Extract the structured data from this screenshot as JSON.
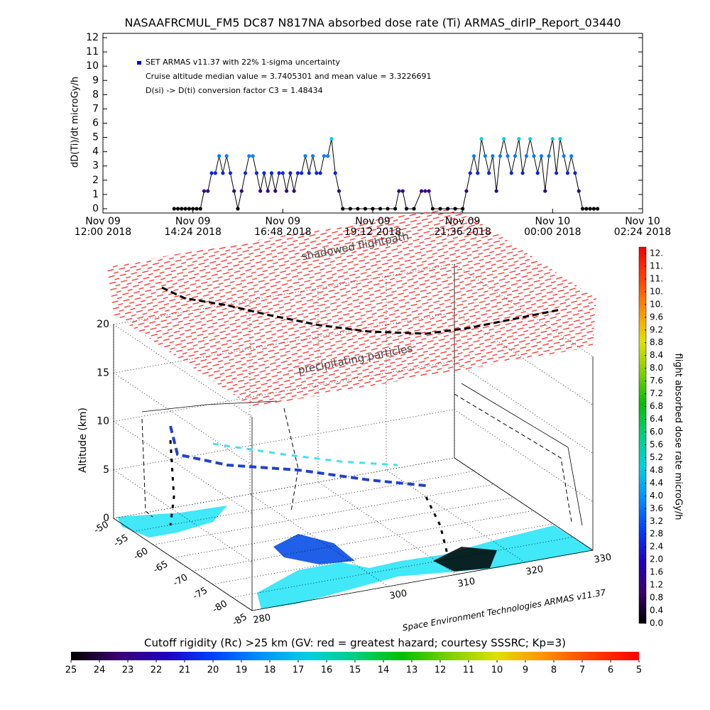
{
  "chart_data": [
    {
      "type": "line",
      "title": "NASAAFRCMUL_FM5 DC87 N817NA absorbed dose rate (Ti) ARMAS_dirIP_Report_03440",
      "ylabel": "dD(Ti)/dt microGy/h",
      "annotations": [
        "Cruise altitude median value = 3.7405301 and mean value = 3.3226691",
        "D(si) -> D(ti) conversion factor C3 = 1.48434"
      ],
      "xlim": [
        "2018-11-09T12:00",
        "2018-11-10T02:24"
      ],
      "xticks": [
        {
          "value": "2018-11-09T12:00",
          "label": "Nov 09\n12:00 2018"
        },
        {
          "value": "2018-11-09T14:24",
          "label": "Nov 09\n14:24 2018"
        },
        {
          "value": "2018-11-09T16:48",
          "label": "Nov 09\n16:48 2018"
        },
        {
          "value": "2018-11-09T19:12",
          "label": "Nov 09\n19:12 2018"
        },
        {
          "value": "2018-11-09T21:36",
          "label": "Nov 09\n21:36 2018"
        },
        {
          "value": "2018-11-10T00:00",
          "label": "Nov 10\n00:00 2018"
        },
        {
          "value": "2018-11-10T02:24",
          "label": "Nov 10\n02:24 2018"
        }
      ],
      "ylim": [
        -0.3,
        12.3
      ],
      "yticks": [
        0,
        1,
        2,
        3,
        4,
        5,
        6,
        7,
        8,
        9,
        10,
        11,
        12
      ],
      "x": [
        "2018-11-09T13:54",
        "2018-11-09T14:00",
        "2018-11-09T14:06",
        "2018-11-09T14:12",
        "2018-11-09T14:18",
        "2018-11-09T14:24",
        "2018-11-09T14:30",
        "2018-11-09T14:36",
        "2018-11-09T14:42",
        "2018-11-09T14:48",
        "2018-11-09T14:54",
        "2018-11-09T15:00",
        "2018-11-09T15:06",
        "2018-11-09T15:12",
        "2018-11-09T15:18",
        "2018-11-09T15:24",
        "2018-11-09T15:30",
        "2018-11-09T15:36",
        "2018-11-09T15:42",
        "2018-11-09T15:48",
        "2018-11-09T15:54",
        "2018-11-09T16:00",
        "2018-11-09T16:06",
        "2018-11-09T16:12",
        "2018-11-09T16:18",
        "2018-11-09T16:24",
        "2018-11-09T16:30",
        "2018-11-09T16:36",
        "2018-11-09T16:42",
        "2018-11-09T16:48",
        "2018-11-09T16:54",
        "2018-11-09T17:00",
        "2018-11-09T17:06",
        "2018-11-09T17:12",
        "2018-11-09T17:18",
        "2018-11-09T17:24",
        "2018-11-09T17:30",
        "2018-11-09T17:36",
        "2018-11-09T17:42",
        "2018-11-09T17:48",
        "2018-11-09T17:54",
        "2018-11-09T18:00",
        "2018-11-09T18:06",
        "2018-11-09T18:12",
        "2018-11-09T18:18",
        "2018-11-09T18:24",
        "2018-11-09T18:36",
        "2018-11-09T18:48",
        "2018-11-09T19:00",
        "2018-11-09T19:12",
        "2018-11-09T19:24",
        "2018-11-09T19:36",
        "2018-11-09T19:48",
        "2018-11-09T19:54",
        "2018-11-09T20:00",
        "2018-11-09T20:06",
        "2018-11-09T20:18",
        "2018-11-09T20:30",
        "2018-11-09T20:36",
        "2018-11-09T20:42",
        "2018-11-09T20:48",
        "2018-11-09T21:00",
        "2018-11-09T21:12",
        "2018-11-09T21:24",
        "2018-11-09T21:36",
        "2018-11-09T21:42",
        "2018-11-09T21:48",
        "2018-11-09T21:54",
        "2018-11-09T22:00",
        "2018-11-09T22:06",
        "2018-11-09T22:12",
        "2018-11-09T22:18",
        "2018-11-09T22:24",
        "2018-11-09T22:30",
        "2018-11-09T22:36",
        "2018-11-09T22:42",
        "2018-11-09T22:48",
        "2018-11-09T22:54",
        "2018-11-09T23:00",
        "2018-11-09T23:06",
        "2018-11-09T23:12",
        "2018-11-09T23:18",
        "2018-11-09T23:24",
        "2018-11-09T23:30",
        "2018-11-09T23:36",
        "2018-11-09T23:42",
        "2018-11-09T23:48",
        "2018-11-09T23:54",
        "2018-11-10T00:00",
        "2018-11-10T00:06",
        "2018-11-10T00:12",
        "2018-11-10T00:18",
        "2018-11-10T00:24",
        "2018-11-10T00:30",
        "2018-11-10T00:36",
        "2018-11-10T00:42",
        "2018-11-10T00:48",
        "2018-11-10T00:54",
        "2018-11-10T01:00",
        "2018-11-10T01:06",
        "2018-11-10T01:12"
      ],
      "series": [
        {
          "name": "SET ARMAS v11.37 with 22% 1-sigma uncertainty",
          "color": "#0000c8",
          "values": [
            0,
            0,
            0,
            0,
            0,
            0,
            0,
            0,
            1.24,
            1.24,
            2.5,
            2.5,
            3.7,
            2.5,
            3.7,
            2.5,
            1.24,
            0,
            1.24,
            2.5,
            3.7,
            3.7,
            2.5,
            1.24,
            2.5,
            1.24,
            2.5,
            1.24,
            2.5,
            2.5,
            1.24,
            2.5,
            1.24,
            2.5,
            2.5,
            3.7,
            2.5,
            3.7,
            2.5,
            2.5,
            3.7,
            3.7,
            4.9,
            2.5,
            1.24,
            0,
            0,
            0,
            0,
            0,
            0,
            0,
            0,
            1.24,
            1.24,
            0,
            0,
            1.24,
            1.24,
            1.24,
            0,
            0,
            0,
            0,
            0,
            1.24,
            2.5,
            3.7,
            2.5,
            4.9,
            3.7,
            2.5,
            3.7,
            1.24,
            3.7,
            4.9,
            3.7,
            2.5,
            3.7,
            4.9,
            2.5,
            3.7,
            4.9,
            3.7,
            2.5,
            3.7,
            1.24,
            3.7,
            4.9,
            2.5,
            4.9,
            3.7,
            2.5,
            3.7,
            2.5,
            1.24,
            0,
            0,
            0,
            0,
            0
          ]
        }
      ]
    },
    {
      "type": "surface3d",
      "labels": [
        "shadowed flightpath",
        "precipitating particles"
      ],
      "zlabel": "Altitude (km)",
      "zlim": [
        0,
        20
      ],
      "zticks": [
        0,
        5,
        10,
        15,
        20
      ],
      "lonlim": [
        280,
        330
      ],
      "lonticks": [
        280,
        300,
        310,
        320,
        330
      ],
      "latlim": [
        -85,
        -50
      ],
      "latticks": [
        -50,
        -55,
        -60,
        -65,
        -70,
        -75,
        -80,
        -85
      ],
      "credit": "Space Environment Technologies ARMAS v11.37",
      "colorbar": {
        "label": "flight absorbed dose rate microGy/h",
        "lim": [
          0,
          11.8
        ],
        "ticks": [
          {
            "value": 0,
            "label": "0.0"
          },
          0.4,
          0.8,
          1.2,
          1.6,
          {
            "value": 2,
            "label": "2.0"
          },
          2.4,
          2.8,
          3.2,
          3.6,
          {
            "value": 4,
            "label": "4.0"
          },
          4.4,
          4.8,
          5.2,
          5.6,
          {
            "value": 6,
            "label": "6.0"
          },
          6.4,
          6.8,
          7.2,
          7.6,
          {
            "value": 8,
            "label": "8.0"
          },
          8.4,
          8.8,
          9.2,
          9.6,
          {
            "value": 10,
            "label": "10."
          },
          {
            "value": 10.4,
            "label": "10."
          },
          {
            "value": 10.8,
            "label": "11."
          },
          {
            "value": 11.2,
            "label": "11."
          },
          {
            "value": 11.6,
            "label": "12."
          }
        ],
        "colors": [
          "#000000",
          "#3c0070",
          "#2000c0",
          "#0040ff",
          "#0090ff",
          "#00d0e0",
          "#00d080",
          "#00c000",
          "#80d000",
          "#e0e000",
          "#ff9000",
          "#ff4000",
          "#ff0000"
        ]
      },
      "colorbar2": {
        "label": "Cutoff rigidity (Rc) >25 km (GV: red = greatest hazard; courtesy SSSRC; Kp=3)",
        "lim": [
          25,
          5
        ],
        "ticks": [
          25,
          24,
          23,
          22,
          21,
          20,
          19,
          18,
          17,
          16,
          15,
          14,
          13,
          12,
          11,
          10,
          9,
          8,
          7,
          6,
          5
        ],
        "colors": [
          "#000000",
          "#3c0070",
          "#2000c0",
          "#0040ff",
          "#0090ff",
          "#00d0e0",
          "#00d080",
          "#00c000",
          "#80d000",
          "#e0e000",
          "#ff9000",
          "#ff4000",
          "#ff0000"
        ]
      }
    }
  ]
}
